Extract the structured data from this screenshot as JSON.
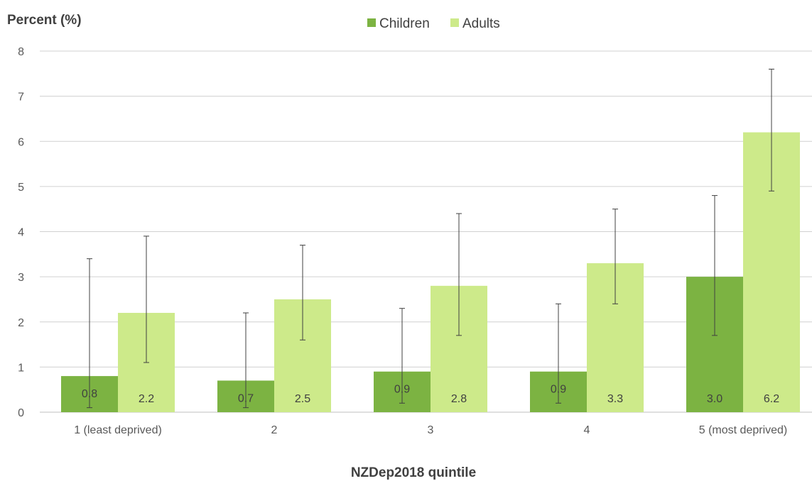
{
  "chart_data": {
    "type": "bar",
    "ylabel": "Percent (%)",
    "xlabel": "NZDep2018 quintile",
    "categories": [
      "1 (least deprived)",
      "2",
      "3",
      "4",
      "5 (most deprived)"
    ],
    "ylim": [
      0,
      8
    ],
    "yticks": [
      0,
      1,
      2,
      3,
      4,
      5,
      6,
      7,
      8
    ],
    "grid": true,
    "legend_position": "top",
    "data_labels": true,
    "error_bars": true,
    "series": [
      {
        "name": "Children",
        "color": "#7cb342",
        "values": [
          0.8,
          0.7,
          0.9,
          0.9,
          3.0
        ],
        "labels": [
          "0.8",
          "0.7",
          "0.9",
          "0.9",
          "3.0"
        ],
        "ci_low": [
          0.1,
          0.1,
          0.2,
          0.2,
          1.7
        ],
        "ci_high": [
          3.4,
          2.2,
          2.3,
          2.4,
          4.8
        ]
      },
      {
        "name": "Adults",
        "color": "#cdea8a",
        "values": [
          2.2,
          2.5,
          2.8,
          3.3,
          6.2
        ],
        "labels": [
          "2.2",
          "2.5",
          "2.8",
          "3.3",
          "6.2"
        ],
        "ci_low": [
          1.1,
          1.6,
          1.7,
          2.4,
          4.9
        ],
        "ci_high": [
          3.9,
          3.7,
          4.4,
          4.5,
          7.6
        ]
      }
    ]
  }
}
